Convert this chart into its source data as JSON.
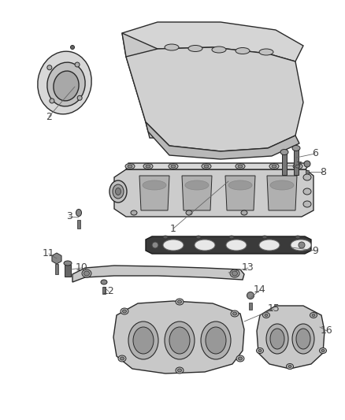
{
  "bg_color": "#ffffff",
  "line_color": "#2a2a2a",
  "label_color": "#444444",
  "fig_width": 4.39,
  "fig_height": 5.33,
  "dpi": 100
}
